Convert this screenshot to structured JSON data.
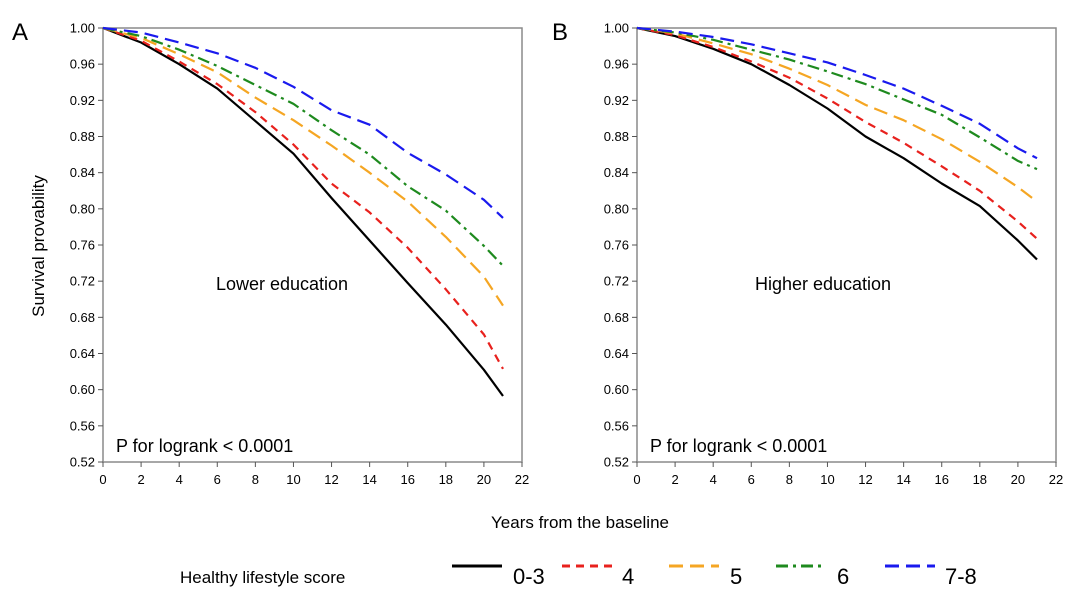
{
  "figure": {
    "xlabel": "Years from the baseline",
    "ylabel": "Survival provability",
    "legend_title": "Healthy lifestyle score"
  },
  "chart_data": [
    {
      "type": "line",
      "panel_label": "A",
      "title": "",
      "annotation": "Lower education",
      "pvalue_text": "P for logrank < 0.0001",
      "xlim": [
        0,
        22
      ],
      "ylim": [
        0.52,
        1.0
      ],
      "x_ticks": [
        0,
        2,
        4,
        6,
        8,
        10,
        12,
        14,
        16,
        18,
        20,
        22
      ],
      "y_ticks": [
        "0.52",
        "0.56",
        "0.60",
        "0.64",
        "0.68",
        "0.72",
        "0.76",
        "0.80",
        "0.84",
        "0.88",
        "0.92",
        "0.96",
        "1.00"
      ],
      "x": [
        0,
        2,
        4,
        6,
        8,
        10,
        12,
        14,
        16,
        18,
        20,
        21
      ],
      "series": [
        {
          "name": "0-3",
          "color": "#000000",
          "dash": "solid",
          "values": [
            1.0,
            0.984,
            0.96,
            0.933,
            0.897,
            0.861,
            0.812,
            0.765,
            0.718,
            0.672,
            0.622,
            0.593
          ]
        },
        {
          "name": "4",
          "color": "#e8211d",
          "dash": "short-dash",
          "values": [
            1.0,
            0.986,
            0.963,
            0.938,
            0.907,
            0.871,
            0.828,
            0.796,
            0.757,
            0.711,
            0.661,
            0.623
          ]
        },
        {
          "name": "5",
          "color": "#f5a623",
          "dash": "long-dash",
          "values": [
            1.0,
            0.989,
            0.971,
            0.951,
            0.923,
            0.898,
            0.87,
            0.84,
            0.808,
            0.769,
            0.725,
            0.693
          ]
        },
        {
          "name": "6",
          "color": "#1e8a1e",
          "dash": "dash-dot",
          "values": [
            1.0,
            0.991,
            0.976,
            0.958,
            0.937,
            0.916,
            0.887,
            0.86,
            0.825,
            0.798,
            0.759,
            0.737
          ]
        },
        {
          "name": "7-8",
          "color": "#1a1aee",
          "dash": "long-dash",
          "values": [
            1.0,
            0.995,
            0.984,
            0.972,
            0.956,
            0.935,
            0.909,
            0.893,
            0.862,
            0.838,
            0.81,
            0.79
          ]
        }
      ]
    },
    {
      "type": "line",
      "panel_label": "B",
      "title": "",
      "annotation": "Higher education",
      "pvalue_text": "P for logrank < 0.0001",
      "xlim": [
        0,
        22
      ],
      "ylim": [
        0.52,
        1.0
      ],
      "x_ticks": [
        0,
        2,
        4,
        6,
        8,
        10,
        12,
        14,
        16,
        18,
        20,
        22
      ],
      "y_ticks": [
        "0.52",
        "0.56",
        "0.60",
        "0.64",
        "0.68",
        "0.72",
        "0.76",
        "0.80",
        "0.84",
        "0.88",
        "0.92",
        "0.96",
        "1.00"
      ],
      "x": [
        0,
        2,
        4,
        6,
        8,
        10,
        12,
        14,
        16,
        18,
        20,
        21
      ],
      "series": [
        {
          "name": "0-3",
          "color": "#000000",
          "dash": "solid",
          "values": [
            1.0,
            0.991,
            0.977,
            0.96,
            0.937,
            0.911,
            0.88,
            0.856,
            0.828,
            0.803,
            0.765,
            0.744
          ]
        },
        {
          "name": "4",
          "color": "#e8211d",
          "dash": "short-dash",
          "values": [
            1.0,
            0.992,
            0.979,
            0.963,
            0.945,
            0.922,
            0.896,
            0.873,
            0.847,
            0.82,
            0.786,
            0.767
          ]
        },
        {
          "name": "5",
          "color": "#f5a623",
          "dash": "long-dash",
          "values": [
            1.0,
            0.994,
            0.983,
            0.971,
            0.955,
            0.937,
            0.915,
            0.898,
            0.877,
            0.852,
            0.824,
            0.808
          ]
        },
        {
          "name": "6",
          "color": "#1e8a1e",
          "dash": "dash-dot",
          "values": [
            1.0,
            0.995,
            0.987,
            0.976,
            0.965,
            0.952,
            0.938,
            0.921,
            0.904,
            0.879,
            0.853,
            0.844
          ]
        },
        {
          "name": "7-8",
          "color": "#1a1aee",
          "dash": "long-dash",
          "values": [
            1.0,
            0.996,
            0.99,
            0.982,
            0.972,
            0.962,
            0.948,
            0.933,
            0.914,
            0.894,
            0.867,
            0.856
          ]
        }
      ]
    }
  ]
}
